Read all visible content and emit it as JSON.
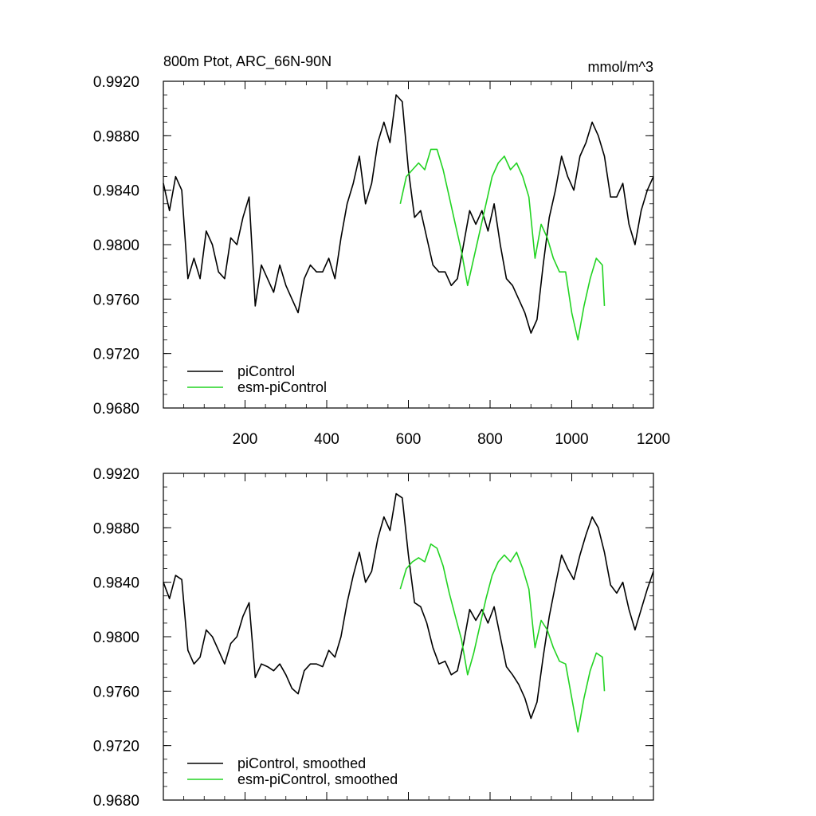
{
  "figure": {
    "title_left": "800m Ptot, ARC_66N-90N",
    "title_right": "mmol/m^3"
  },
  "chart_data": [
    {
      "type": "line",
      "title": "800m Ptot, ARC_66N-90N",
      "units": "mmol/m^3",
      "xlim": [
        0,
        1200
      ],
      "ylim": [
        0.968,
        0.992
      ],
      "xticks": [
        200,
        400,
        600,
        800,
        1000,
        1200
      ],
      "yticks": [
        0.968,
        0.972,
        0.976,
        0.98,
        0.984,
        0.988,
        0.992
      ],
      "ytick_labels": [
        "0.9680",
        "0.9720",
        "0.9760",
        "0.9800",
        "0.9840",
        "0.9880",
        "0.9920"
      ],
      "xtick_labels": [
        "200",
        "400",
        "600",
        "800",
        "1000",
        "1200"
      ],
      "show_xtick_labels": true,
      "grid": false,
      "legend_position": "bottom-left",
      "series": [
        {
          "name": "piControl",
          "color": "#000000",
          "x": [
            0,
            15,
            30,
            45,
            60,
            75,
            90,
            105,
            120,
            135,
            150,
            165,
            180,
            195,
            210,
            225,
            240,
            255,
            270,
            285,
            300,
            315,
            330,
            345,
            360,
            375,
            390,
            405,
            420,
            435,
            450,
            465,
            480,
            495,
            510,
            525,
            540,
            555,
            570,
            585,
            600,
            615,
            630,
            645,
            660,
            675,
            690,
            705,
            720,
            735,
            750,
            765,
            780,
            795,
            810,
            825,
            840,
            855,
            870,
            885,
            900,
            915,
            930,
            945,
            960,
            975,
            990,
            1005,
            1020,
            1035,
            1050,
            1065,
            1080,
            1095,
            1110,
            1125,
            1140,
            1155,
            1170,
            1185,
            1200
          ],
          "values": [
            0.9845,
            0.9825,
            0.985,
            0.984,
            0.9775,
            0.979,
            0.9775,
            0.981,
            0.98,
            0.978,
            0.9775,
            0.9805,
            0.98,
            0.982,
            0.9835,
            0.9755,
            0.9785,
            0.9775,
            0.9765,
            0.9785,
            0.977,
            0.976,
            0.975,
            0.9775,
            0.9785,
            0.978,
            0.978,
            0.979,
            0.9775,
            0.9805,
            0.983,
            0.9845,
            0.9865,
            0.983,
            0.9845,
            0.9875,
            0.989,
            0.9875,
            0.991,
            0.9905,
            0.9855,
            0.982,
            0.9825,
            0.9805,
            0.9785,
            0.978,
            0.978,
            0.977,
            0.9775,
            0.98,
            0.9825,
            0.9815,
            0.9825,
            0.981,
            0.983,
            0.98,
            0.9775,
            0.977,
            0.976,
            0.975,
            0.9735,
            0.9745,
            0.9785,
            0.982,
            0.984,
            0.9865,
            0.985,
            0.984,
            0.9865,
            0.9875,
            0.989,
            0.988,
            0.9865,
            0.9835,
            0.9835,
            0.9845,
            0.9815,
            0.98,
            0.9825,
            0.984,
            0.985
          ]
        },
        {
          "name": "esm-piControl",
          "color": "#22d322",
          "x": [
            580,
            595,
            610,
            625,
            640,
            655,
            670,
            685,
            700,
            715,
            730,
            745,
            760,
            775,
            790,
            805,
            820,
            835,
            850,
            865,
            880,
            895,
            910,
            925,
            940,
            955,
            970,
            985,
            1000,
            1015,
            1030,
            1045,
            1060,
            1075,
            1080
          ],
          "values": [
            0.983,
            0.985,
            0.9855,
            0.986,
            0.9855,
            0.987,
            0.987,
            0.9855,
            0.9835,
            0.9815,
            0.9795,
            0.977,
            0.979,
            0.981,
            0.983,
            0.985,
            0.986,
            0.9865,
            0.9855,
            0.986,
            0.985,
            0.9835,
            0.979,
            0.9815,
            0.9805,
            0.979,
            0.978,
            0.978,
            0.975,
            0.973,
            0.9755,
            0.9775,
            0.979,
            0.9785,
            0.9755
          ]
        }
      ]
    },
    {
      "type": "line",
      "xlim": [
        0,
        1200
      ],
      "ylim": [
        0.968,
        0.992
      ],
      "xticks": [
        200,
        400,
        600,
        800,
        1000,
        1200
      ],
      "yticks": [
        0.968,
        0.972,
        0.976,
        0.98,
        0.984,
        0.988,
        0.992
      ],
      "ytick_labels": [
        "0.9680",
        "0.9720",
        "0.9760",
        "0.9800",
        "0.9840",
        "0.9880",
        "0.9920"
      ],
      "xtick_labels": [],
      "show_xtick_labels": false,
      "grid": false,
      "legend_position": "bottom-left",
      "series": [
        {
          "name": "piControl, smoothed",
          "color": "#000000",
          "x": [
            0,
            15,
            30,
            45,
            60,
            75,
            90,
            105,
            120,
            135,
            150,
            165,
            180,
            195,
            210,
            225,
            240,
            255,
            270,
            285,
            300,
            315,
            330,
            345,
            360,
            375,
            390,
            405,
            420,
            435,
            450,
            465,
            480,
            495,
            510,
            525,
            540,
            555,
            570,
            585,
            600,
            615,
            630,
            645,
            660,
            675,
            690,
            705,
            720,
            735,
            750,
            765,
            780,
            795,
            810,
            825,
            840,
            855,
            870,
            885,
            900,
            915,
            930,
            945,
            960,
            975,
            990,
            1005,
            1020,
            1035,
            1050,
            1065,
            1080,
            1095,
            1110,
            1125,
            1140,
            1155,
            1170,
            1185,
            1200
          ],
          "values": [
            0.984,
            0.9828,
            0.9845,
            0.9842,
            0.979,
            0.978,
            0.9785,
            0.9805,
            0.98,
            0.979,
            0.978,
            0.9795,
            0.98,
            0.9815,
            0.9825,
            0.977,
            0.978,
            0.9778,
            0.9775,
            0.978,
            0.9772,
            0.9762,
            0.9758,
            0.9775,
            0.978,
            0.978,
            0.9778,
            0.979,
            0.9785,
            0.98,
            0.9825,
            0.9845,
            0.9862,
            0.984,
            0.9848,
            0.9872,
            0.9888,
            0.9878,
            0.9905,
            0.9902,
            0.986,
            0.9825,
            0.9822,
            0.981,
            0.9792,
            0.978,
            0.9782,
            0.9772,
            0.9775,
            0.9795,
            0.982,
            0.9812,
            0.982,
            0.981,
            0.9822,
            0.98,
            0.9778,
            0.9772,
            0.9765,
            0.9755,
            0.974,
            0.9752,
            0.9785,
            0.9815,
            0.9838,
            0.986,
            0.985,
            0.9842,
            0.986,
            0.9875,
            0.9888,
            0.988,
            0.9862,
            0.9838,
            0.9832,
            0.984,
            0.982,
            0.9805,
            0.982,
            0.9835,
            0.9848
          ]
        },
        {
          "name": "esm-piControl, smoothed",
          "color": "#22d322",
          "x": [
            580,
            595,
            610,
            625,
            640,
            655,
            670,
            685,
            700,
            715,
            730,
            745,
            760,
            775,
            790,
            805,
            820,
            835,
            850,
            865,
            880,
            895,
            910,
            925,
            940,
            955,
            970,
            985,
            1000,
            1015,
            1030,
            1045,
            1060,
            1075,
            1080
          ],
          "values": [
            0.9835,
            0.985,
            0.9855,
            0.9858,
            0.9855,
            0.9868,
            0.9865,
            0.9852,
            0.9832,
            0.9815,
            0.9798,
            0.9772,
            0.9788,
            0.9808,
            0.9828,
            0.9845,
            0.9855,
            0.986,
            0.9855,
            0.9862,
            0.985,
            0.9835,
            0.9792,
            0.9812,
            0.9805,
            0.9792,
            0.9782,
            0.978,
            0.9755,
            0.973,
            0.9755,
            0.9775,
            0.9788,
            0.9785,
            0.976
          ]
        }
      ]
    }
  ]
}
